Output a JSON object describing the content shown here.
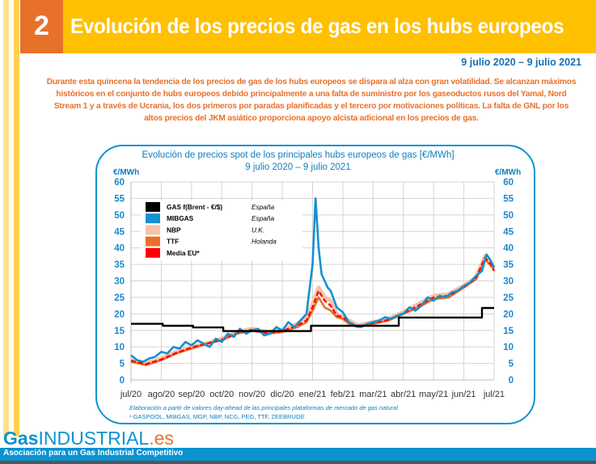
{
  "header": {
    "section_number": "2",
    "title": "Evolución de los precios de gas en los hubs europeos"
  },
  "date_range": "9 julio 2020 – 9 julio 2021",
  "summary": "Durante esta quincena la tendencia de los precios de gas de los hubs europeos se dispara al alza con gran volatilidad. Se alcanzan máximos históricos en el conjunto de hubs europeos debido principalmente a una falta de suministro por los gaseoductos rusos del Yamal, Nord Stream 1 y a través de Ucrania, los dos primeros por paradas planificadas y el tercero por motivaciones políticas. La falta de GNL por los altos precios del JKM asiático proporciona apoyo alcista adicional en los precios de gas.",
  "chart_data": {
    "type": "line",
    "title": "Evolución de precios spot de los principales hubs europeos de gas [€/MWh]",
    "subtitle": "9 julio 2020 – 9 julio 2021",
    "xlabel": "",
    "ylabel": "€/MWh",
    "ylabel_right": "€/MWh",
    "ylim": [
      0,
      60
    ],
    "yticks": [
      0,
      5,
      10,
      15,
      20,
      25,
      30,
      35,
      40,
      45,
      50,
      55,
      60
    ],
    "categories": [
      "jul/20",
      "ago/20",
      "sep/20",
      "oct/20",
      "nov/20",
      "dic/20",
      "ene/21",
      "feb/21",
      "mar/21",
      "abr/21",
      "may/21",
      "jun/21",
      "jul/21"
    ],
    "grid": true,
    "legend_position": "top-left",
    "x_unit": "months since jul/20",
    "series": [
      {
        "name": "GAS f(Brent - €/$)",
        "country": "España",
        "color": "#000000",
        "x": [
          0,
          1.05,
          1.05,
          2.05,
          2.05,
          3.05,
          3.05,
          5.95,
          5.95,
          8.85,
          8.85,
          11.6,
          11.6,
          12.0
        ],
        "values": [
          17.0,
          17.0,
          16.4,
          16.4,
          15.9,
          15.9,
          14.8,
          14.8,
          16.4,
          16.4,
          18.9,
          18.9,
          21.8,
          21.8
        ]
      },
      {
        "name": "MIBGAS",
        "country": "España",
        "color": "#1590d0",
        "x": [
          0,
          0.2,
          0.4,
          0.6,
          0.8,
          1.0,
          1.2,
          1.4,
          1.6,
          1.8,
          2.0,
          2.2,
          2.4,
          2.6,
          2.8,
          3.0,
          3.2,
          3.4,
          3.6,
          3.8,
          4.0,
          4.2,
          4.4,
          4.6,
          4.8,
          5.0,
          5.2,
          5.4,
          5.6,
          5.8,
          6.0,
          6.1,
          6.2,
          6.3,
          6.4,
          6.5,
          6.6,
          6.8,
          7.0,
          7.2,
          7.4,
          7.6,
          7.8,
          8.0,
          8.2,
          8.4,
          8.6,
          8.8,
          9.0,
          9.2,
          9.4,
          9.6,
          9.8,
          10.0,
          10.2,
          10.4,
          10.6,
          10.8,
          11.0,
          11.2,
          11.4,
          11.6,
          11.75,
          11.9,
          12.0
        ],
        "values": [
          7.5,
          6.0,
          5.5,
          6.5,
          7.0,
          8.5,
          8.0,
          10.0,
          9.5,
          11.5,
          10.5,
          12.0,
          11.0,
          10.0,
          12.5,
          11.5,
          14.0,
          13.0,
          15.5,
          14.0,
          15.0,
          15.5,
          13.5,
          14.0,
          16.0,
          15.0,
          17.5,
          16.0,
          18.0,
          20.0,
          35.0,
          55.0,
          40.0,
          32.0,
          30.0,
          28.0,
          27.0,
          22.0,
          20.5,
          17.5,
          16.5,
          16.0,
          17.0,
          17.5,
          18.0,
          19.0,
          18.5,
          19.5,
          20.0,
          22.0,
          21.0,
          22.5,
          25.0,
          24.0,
          25.5,
          25.0,
          26.5,
          27.0,
          28.5,
          29.5,
          31.5,
          33.0,
          38.0,
          36.0,
          34.0
        ]
      },
      {
        "name": "NBP",
        "country": "U.K.",
        "color": "#f4c3a8",
        "x": [
          0,
          0.5,
          1.0,
          1.5,
          2.0,
          2.5,
          3.0,
          3.5,
          4.0,
          4.5,
          5.0,
          5.5,
          5.8,
          6.0,
          6.2,
          6.4,
          6.6,
          6.8,
          7.0,
          7.2,
          7.5,
          8.0,
          8.5,
          9.0,
          9.5,
          10.0,
          10.5,
          11.0,
          11.4,
          11.7,
          11.9,
          12.0
        ],
        "values": [
          6.0,
          5.0,
          6.5,
          8.5,
          10.0,
          11.0,
          12.5,
          14.5,
          15.5,
          14.5,
          15.0,
          17.0,
          19.0,
          23.0,
          28.0,
          25.0,
          24.0,
          20.0,
          19.0,
          18.0,
          16.5,
          17.5,
          18.5,
          20.5,
          23.0,
          25.5,
          26.0,
          28.5,
          31.0,
          37.5,
          35.0,
          34.0
        ]
      },
      {
        "name": "TTF",
        "country": "Holanda",
        "color": "#e8712a",
        "x": [
          0,
          0.5,
          1.0,
          1.5,
          2.0,
          2.5,
          3.0,
          3.5,
          4.0,
          4.5,
          5.0,
          5.5,
          5.8,
          6.0,
          6.2,
          6.4,
          6.6,
          6.8,
          7.0,
          7.2,
          7.5,
          8.0,
          8.5,
          9.0,
          9.5,
          10.0,
          10.5,
          11.0,
          11.4,
          11.7,
          11.9,
          12.0
        ],
        "values": [
          5.5,
          4.5,
          6.0,
          8.0,
          9.5,
          11.0,
          12.0,
          14.0,
          15.0,
          14.0,
          14.5,
          16.0,
          17.5,
          21.0,
          25.0,
          22.0,
          21.0,
          19.0,
          18.5,
          17.0,
          16.0,
          17.0,
          18.0,
          20.0,
          22.0,
          24.5,
          25.0,
          28.0,
          30.5,
          36.5,
          34.5,
          33.5
        ]
      },
      {
        "name": "Media EU*",
        "country": "",
        "color": "#ff0000",
        "x": [
          0,
          0.5,
          1.0,
          1.5,
          2.0,
          2.5,
          3.0,
          3.5,
          4.0,
          4.5,
          5.0,
          5.5,
          5.8,
          6.0,
          6.2,
          6.4,
          6.6,
          6.8,
          7.0,
          7.2,
          7.5,
          8.0,
          8.5,
          9.0,
          9.5,
          10.0,
          10.5,
          11.0,
          11.4,
          11.7,
          11.9,
          12.0
        ],
        "values": [
          5.8,
          4.8,
          6.2,
          8.2,
          9.8,
          11.0,
          12.2,
          14.2,
          15.2,
          14.2,
          14.8,
          16.5,
          18.0,
          22.0,
          27.0,
          24.0,
          22.5,
          19.5,
          19.0,
          17.5,
          16.2,
          17.2,
          18.2,
          20.2,
          22.5,
          25.0,
          25.5,
          28.2,
          30.8,
          37.0,
          35.0,
          33.0
        ]
      }
    ]
  },
  "notes": {
    "source": "Elaboración a partir de valores day-ahead de las principales plataformas de mercado de gas natural",
    "footnote": "¹ GASPOOL, MIBGAS, MGP, NBP, NCG, PEG, TTF, ZEEBRUGE"
  },
  "footer": {
    "logo_gas": "Gas",
    "logo_industrial": "INDUSTRIAL",
    "logo_es": ".es",
    "tagline": "Asociación para un Gas Industrial Competitivo"
  }
}
